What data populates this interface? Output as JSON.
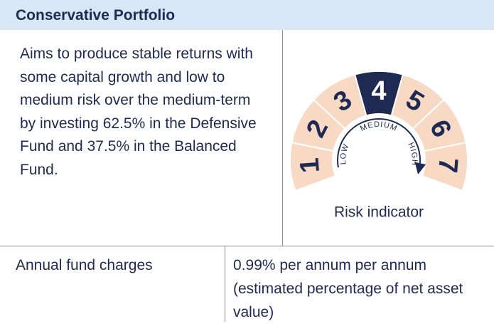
{
  "header": {
    "title": "Conservative Portfolio"
  },
  "description": "Aims to produce stable returns with some capital growth and low to medium risk over the medium-term by investing 62.5% in the Defensive Fund and 37.5% in the Balanced Fund.",
  "risk_indicator": {
    "levels": [
      1,
      2,
      3,
      4,
      5,
      6,
      7
    ],
    "selected": 4,
    "scale_labels": [
      "LOW",
      "MEDIUM",
      "HIGH"
    ],
    "caption": "Risk indicator"
  },
  "charges": {
    "label": "Annual fund charges",
    "value": "0.99%  per annum per annum (estimated percentage of net asset value)"
  }
}
